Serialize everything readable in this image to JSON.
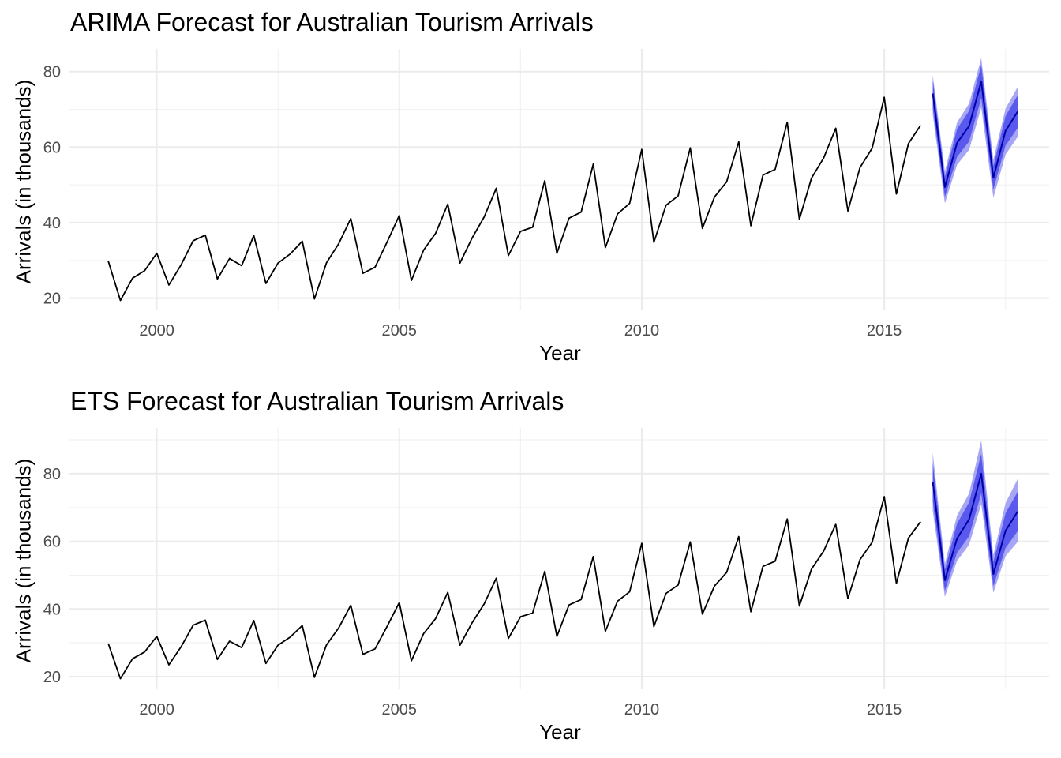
{
  "chart_data": [
    {
      "type": "line",
      "title": "ARIMA Forecast for Australian Tourism Arrivals",
      "xlabel": "Year",
      "ylabel": "Arrivals (in thousands)",
      "xlim": [
        1998.2,
        2018.4
      ],
      "ylim": [
        17,
        86
      ],
      "x_ticks": [
        2000,
        2005,
        2010,
        2015
      ],
      "y_ticks": [
        20,
        40,
        60,
        80
      ],
      "grid": true,
      "legend": "none",
      "colors": {
        "history": "#000000",
        "forecast": "#0000aa",
        "pi80": "#5959ee",
        "pi95": "#a6a6f5"
      },
      "series": [
        {
          "x": [
            1999.0,
            1999.25,
            1999.5,
            1999.75,
            2000.0,
            2000.25,
            2000.5,
            2000.75,
            2001.0,
            2001.25,
            2001.5,
            2001.75,
            2002.0,
            2002.25,
            2002.5,
            2002.75,
            2003.0,
            2003.25,
            2003.5,
            2003.75,
            2004.0,
            2004.25,
            2004.5,
            2004.75,
            2005.0,
            2005.25,
            2005.5,
            2005.75,
            2006.0,
            2006.25,
            2006.5,
            2006.75,
            2007.0,
            2007.25,
            2007.5,
            2007.75,
            2008.0,
            2008.25,
            2008.5,
            2008.75,
            2009.0,
            2009.25,
            2009.5,
            2009.75,
            2010.0,
            2010.25,
            2010.5,
            2010.75,
            2011.0,
            2011.25,
            2011.5,
            2011.75,
            2012.0,
            2012.25,
            2012.5,
            2012.75,
            2013.0,
            2013.25,
            2013.5,
            2013.75,
            2014.0,
            2014.25,
            2014.5,
            2014.75,
            2015.0,
            2015.25,
            2015.5,
            2015.75
          ],
          "values": [
            29.8,
            19.4,
            25.3,
            27.3,
            31.9,
            23.5,
            28.8,
            35.2,
            36.7,
            25.1,
            30.5,
            28.6,
            36.6,
            23.9,
            29.3,
            31.7,
            35.1,
            19.8,
            29.4,
            34.4,
            41.1,
            26.6,
            28.2,
            34.9,
            41.9,
            24.7,
            32.7,
            37.2,
            44.9,
            29.3,
            35.9,
            41.5,
            49.1,
            31.3,
            37.7,
            38.8,
            51.1,
            31.9,
            41.2,
            42.8,
            55.5,
            33.4,
            42.3,
            45.1,
            59.4,
            34.8,
            44.6,
            47.1,
            59.8,
            38.5,
            46.8,
            50.8,
            61.4,
            39.2,
            52.6,
            54.1,
            66.6,
            40.9,
            51.8,
            57.1,
            65.0,
            43.1,
            54.6,
            59.7,
            73.2,
            47.6,
            61.0,
            65.8
          ]
        }
      ],
      "forecast": {
        "x": [
          2016.0,
          2016.25,
          2016.5,
          2016.75,
          2017.0,
          2017.25,
          2017.5,
          2017.75
        ],
        "mean": [
          74.2,
          49.4,
          61.1,
          65.6,
          77.4,
          51.9,
          64.3,
          69.4
        ],
        "lo80": [
          70.4,
          46.8,
          57.4,
          61.5,
          73.0,
          48.8,
          60.4,
          65.1
        ],
        "hi80": [
          77.8,
          52.1,
          64.8,
          69.6,
          81.7,
          55.0,
          68.2,
          73.7
        ],
        "lo95": [
          68.6,
          45.1,
          55.3,
          59.3,
          70.5,
          46.6,
          58.0,
          62.7
        ],
        "hi95": [
          79.2,
          53.6,
          66.5,
          71.6,
          83.6,
          56.6,
          70.2,
          75.9
        ]
      }
    },
    {
      "type": "line",
      "title": "ETS Forecast for Australian Tourism Arrivals",
      "xlabel": "Year",
      "ylabel": "Arrivals (in thousands)",
      "xlim": [
        1998.2,
        2018.4
      ],
      "ylim": [
        16.5,
        93.5
      ],
      "x_ticks": [
        2000,
        2005,
        2010,
        2015
      ],
      "y_ticks": [
        20,
        40,
        60,
        80
      ],
      "grid": true,
      "legend": "none",
      "colors": {
        "history": "#000000",
        "forecast": "#0000aa",
        "pi80": "#5959ee",
        "pi95": "#a6a6f5"
      },
      "series": [
        {
          "x": [
            1999.0,
            1999.25,
            1999.5,
            1999.75,
            2000.0,
            2000.25,
            2000.5,
            2000.75,
            2001.0,
            2001.25,
            2001.5,
            2001.75,
            2002.0,
            2002.25,
            2002.5,
            2002.75,
            2003.0,
            2003.25,
            2003.5,
            2003.75,
            2004.0,
            2004.25,
            2004.5,
            2004.75,
            2005.0,
            2005.25,
            2005.5,
            2005.75,
            2006.0,
            2006.25,
            2006.5,
            2006.75,
            2007.0,
            2007.25,
            2007.5,
            2007.75,
            2008.0,
            2008.25,
            2008.5,
            2008.75,
            2009.0,
            2009.25,
            2009.5,
            2009.75,
            2010.0,
            2010.25,
            2010.5,
            2010.75,
            2011.0,
            2011.25,
            2011.5,
            2011.75,
            2012.0,
            2012.25,
            2012.5,
            2012.75,
            2013.0,
            2013.25,
            2013.5,
            2013.75,
            2014.0,
            2014.25,
            2014.5,
            2014.75,
            2015.0,
            2015.25,
            2015.5,
            2015.75
          ],
          "values": [
            29.8,
            19.4,
            25.3,
            27.3,
            31.9,
            23.5,
            28.8,
            35.2,
            36.7,
            25.1,
            30.5,
            28.6,
            36.6,
            23.9,
            29.3,
            31.7,
            35.1,
            19.8,
            29.4,
            34.4,
            41.1,
            26.6,
            28.2,
            34.9,
            41.9,
            24.7,
            32.7,
            37.2,
            44.9,
            29.3,
            35.9,
            41.5,
            49.1,
            31.3,
            37.7,
            38.8,
            51.1,
            31.9,
            41.2,
            42.8,
            55.5,
            33.4,
            42.3,
            45.1,
            59.4,
            34.8,
            44.6,
            47.1,
            59.8,
            38.5,
            46.8,
            50.8,
            61.4,
            39.2,
            52.6,
            54.1,
            66.6,
            40.9,
            51.8,
            57.1,
            65.0,
            43.1,
            54.6,
            59.7,
            73.2,
            47.6,
            61.0,
            65.8
          ]
        }
      ],
      "forecast": {
        "x": [
          2016.0,
          2016.25,
          2016.5,
          2016.75,
          2017.0,
          2017.25,
          2017.5,
          2017.75
        ],
        "mean": [
          77.6,
          48.5,
          60.8,
          66.5,
          80.0,
          50.3,
          63.1,
          68.8
        ],
        "lo80": [
          71.8,
          45.4,
          56.6,
          61.5,
          74.2,
          46.8,
          58.0,
          63.0
        ],
        "hi80": [
          83.2,
          51.6,
          65.2,
          71.5,
          85.8,
          53.9,
          68.3,
          74.6
        ],
        "lo95": [
          69.0,
          43.6,
          54.2,
          59.0,
          71.0,
          44.8,
          55.6,
          59.8
        ],
        "hi95": [
          86.2,
          53.4,
          67.6,
          74.2,
          89.8,
          55.9,
          71.3,
          78.4
        ]
      }
    }
  ]
}
